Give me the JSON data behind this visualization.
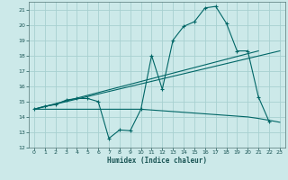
{
  "xlabel": "Humidex (Indice chaleur)",
  "xlim": [
    -0.5,
    23.5
  ],
  "ylim": [
    12,
    21.5
  ],
  "yticks": [
    12,
    13,
    14,
    15,
    16,
    17,
    18,
    19,
    20,
    21
  ],
  "xticks": [
    0,
    1,
    2,
    3,
    4,
    5,
    6,
    7,
    8,
    9,
    10,
    11,
    12,
    13,
    14,
    15,
    16,
    17,
    18,
    19,
    20,
    21,
    22,
    23
  ],
  "bg_color": "#cce9e9",
  "grid_color": "#a8d0d0",
  "line_color": "#006666",
  "main_x": [
    0,
    1,
    2,
    3,
    4,
    5,
    6,
    7,
    8,
    9,
    10,
    11,
    12,
    13,
    14,
    15,
    16,
    17,
    18,
    19,
    20,
    21,
    22
  ],
  "main_y": [
    14.5,
    14.7,
    14.8,
    15.1,
    15.2,
    15.2,
    15.0,
    12.6,
    13.15,
    13.1,
    14.5,
    18.0,
    15.8,
    19.0,
    19.9,
    20.2,
    21.1,
    21.2,
    20.1,
    18.3,
    18.3,
    15.3,
    13.7
  ],
  "trend1_x": [
    0,
    21
  ],
  "trend1_y": [
    14.5,
    18.3
  ],
  "trend2_x": [
    0,
    23
  ],
  "trend2_y": [
    14.5,
    18.3
  ],
  "flat_x": [
    0,
    1,
    2,
    3,
    4,
    5,
    6,
    7,
    8,
    9,
    10,
    11,
    12,
    13,
    14,
    15,
    16,
    17,
    18,
    19,
    20,
    21,
    22,
    23
  ],
  "flat_y": [
    14.5,
    14.5,
    14.5,
    14.5,
    14.5,
    14.5,
    14.5,
    14.5,
    14.5,
    14.5,
    14.5,
    14.45,
    14.4,
    14.35,
    14.3,
    14.25,
    14.2,
    14.15,
    14.1,
    14.05,
    14.0,
    13.9,
    13.78,
    13.65
  ]
}
